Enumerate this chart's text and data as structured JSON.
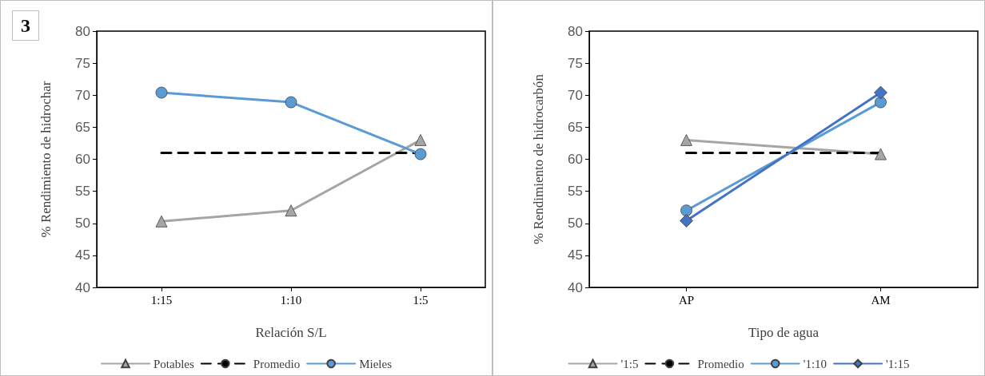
{
  "chart_data": [
    {
      "type": "line",
      "annotations": [
        "3"
      ],
      "xlabel": "Relación S/L",
      "ylabel": "% Rendimiento de hidrochar",
      "categories": [
        "1:15",
        "1:10",
        "1:5"
      ],
      "series": [
        {
          "name": "Potables",
          "color": "#a5a5a5",
          "marker": "triangle",
          "values": [
            50.3,
            52,
            63
          ]
        },
        {
          "name": "Promedio",
          "color": "#000000",
          "marker": "none",
          "line_style": "dashed",
          "values": [
            61,
            61,
            61
          ]
        },
        {
          "name": "Mieles",
          "color": "#5b9bd5",
          "marker": "circle",
          "values": [
            70.4,
            68.9,
            60.8
          ]
        }
      ],
      "ylim": [
        40,
        80
      ],
      "yticks": [
        40,
        45,
        50,
        55,
        60,
        65,
        70,
        75,
        80
      ],
      "grid": false,
      "legend": "bottom"
    },
    {
      "type": "line",
      "xlabel": "Tipo de agua",
      "ylabel": "% Rendimiento de hidrocarbón",
      "categories": [
        "AP",
        "AM"
      ],
      "series": [
        {
          "name": "'1:5",
          "color": "#a5a5a5",
          "marker": "triangle",
          "values": [
            63,
            60.8
          ]
        },
        {
          "name": "Promedio",
          "color": "#000000",
          "marker": "none",
          "line_style": "dashed",
          "values": [
            61,
            61
          ]
        },
        {
          "name": "'1:10",
          "color": "#5b9bd5",
          "marker": "circle",
          "values": [
            52,
            68.9
          ]
        },
        {
          "name": "'1:15",
          "color": "#4472c4",
          "marker": "diamond",
          "values": [
            50.4,
            70.4
          ]
        }
      ],
      "ylim": [
        40,
        80
      ],
      "yticks": [
        40,
        45,
        50,
        55,
        60,
        65,
        70,
        75,
        80
      ],
      "grid": false,
      "legend": "bottom"
    }
  ]
}
